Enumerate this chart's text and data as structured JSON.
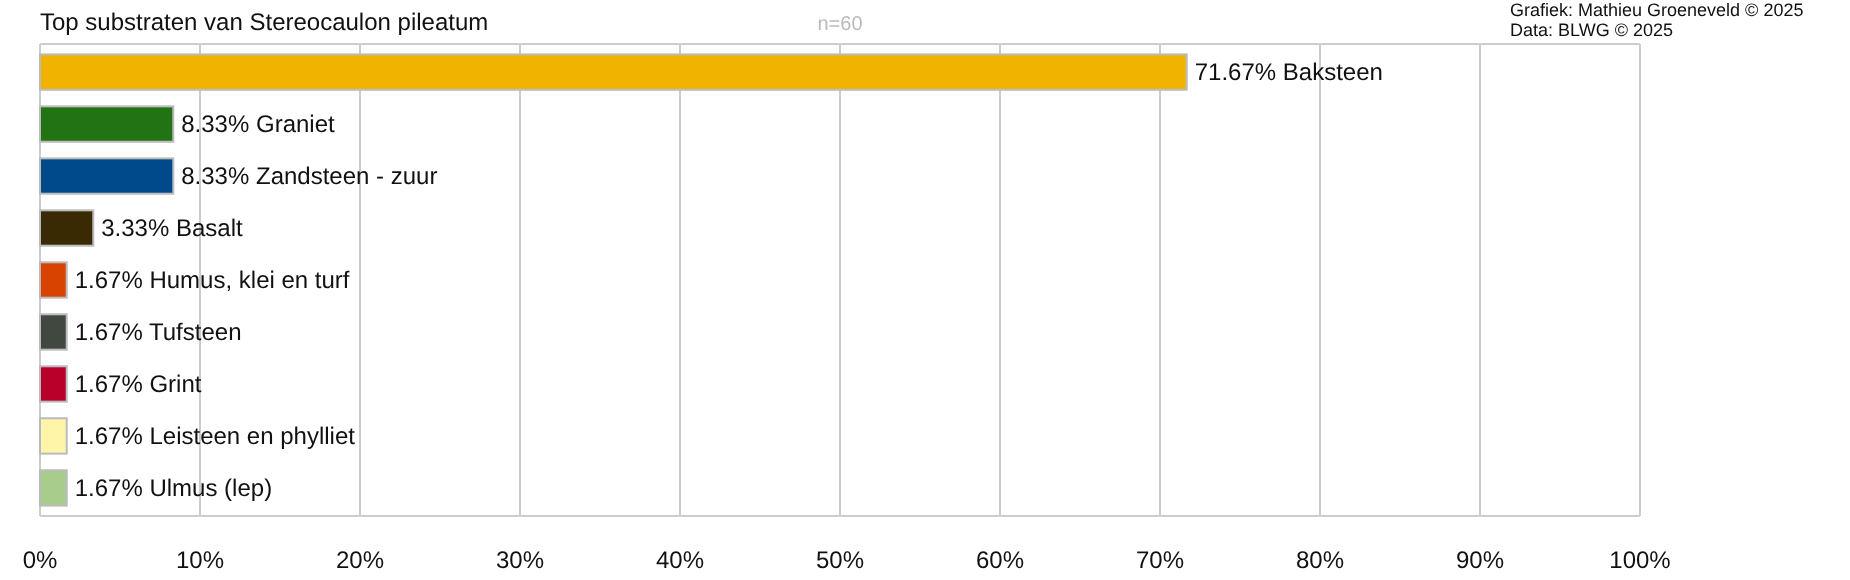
{
  "chart_data": {
    "type": "bar",
    "orientation": "horizontal",
    "title": "Top substraten van Stereocaulon pileatum",
    "subtitle": "n=60",
    "annotations": [
      "Grafiek: Mathieu Groeneveld © 2025",
      "Data: BLWG © 2025"
    ],
    "categories": [
      null,
      null,
      null,
      null,
      null,
      null,
      null,
      null,
      null
    ],
    "values": [
      71.67,
      8.33,
      8.33,
      3.33,
      1.67,
      1.67,
      1.67,
      1.67,
      1.67
    ],
    "colors": [
      "#f0b400",
      "#217314",
      "#004a8c",
      "#3a2a04",
      "#d94300",
      "#404840",
      "#b8002a",
      "#fff5a8",
      "#a8cc8c"
    ],
    "value_labels": [
      "71.67% Baksteen",
      "8.33% Graniet",
      "8.33% Zandsteen - zuur",
      "3.33% Basalt",
      "1.67% Humus, klei en turf",
      "1.67% Tufsteen",
      "1.67% Grint",
      "1.67% Leisteen en phylliet",
      "1.67% Ulmus (lep)"
    ],
    "xlim": [
      0,
      100
    ],
    "xticks": [
      {
        "value": 0,
        "label": "0%"
      },
      {
        "value": 10,
        "label": "10%"
      },
      {
        "value": 20,
        "label": "20%"
      },
      {
        "value": 30,
        "label": "30%"
      },
      {
        "value": 40,
        "label": "40%"
      },
      {
        "value": 50,
        "label": "50%"
      },
      {
        "value": 60,
        "label": "60%"
      },
      {
        "value": 70,
        "label": "70%"
      },
      {
        "value": 80,
        "label": "80%"
      },
      {
        "value": 90,
        "label": "90%"
      },
      {
        "value": 100,
        "label": "100%"
      }
    ],
    "grid": "x"
  }
}
